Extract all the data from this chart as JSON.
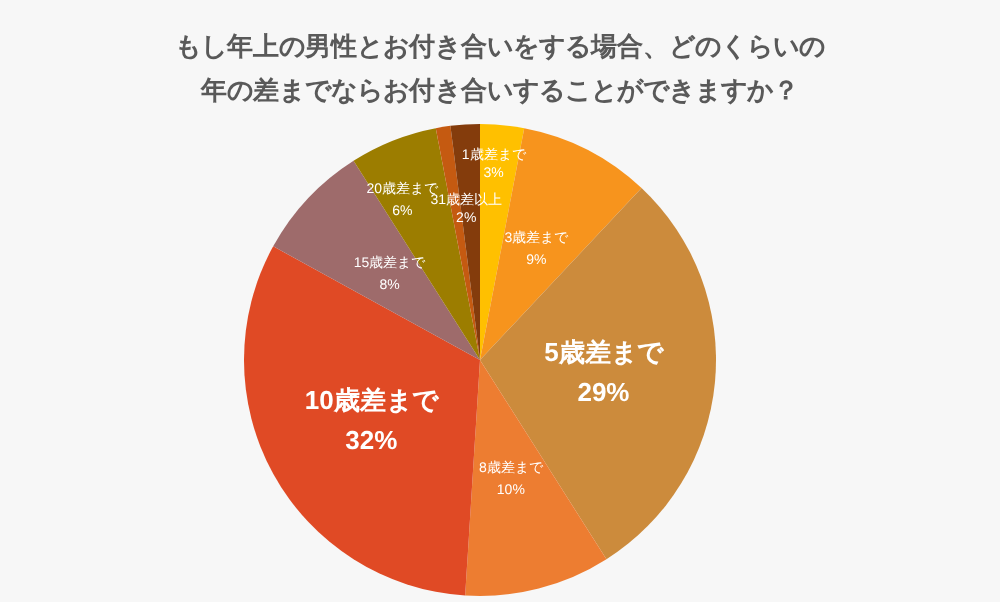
{
  "chart_data": {
    "type": "pie",
    "title": "もし年上の男性とお付き合いをする場合、どのくらいの年の差までならお付き合いすることができますか？",
    "categories": [
      "1歳差まで",
      "3歳差まで",
      "5歳差まで",
      "8歳差まで",
      "10歳差まで",
      "15歳差まで",
      "20歳差まで",
      null,
      "31歳差以上"
    ],
    "values": [
      3,
      9,
      29,
      10,
      32,
      8,
      6,
      1,
      2
    ],
    "value_labels": [
      "3%",
      "9%",
      "29%",
      "10%",
      "32%",
      "8%",
      "6%",
      null,
      "2%"
    ],
    "colors": [
      "#ffc000",
      "#f7941d",
      "#cc8b3c",
      "#ed7d31",
      "#e04a25",
      "#9e6b6b",
      "#9c7d00",
      "#c55a11",
      "#843c0c"
    ],
    "data_labels": true,
    "legend": false
  }
}
